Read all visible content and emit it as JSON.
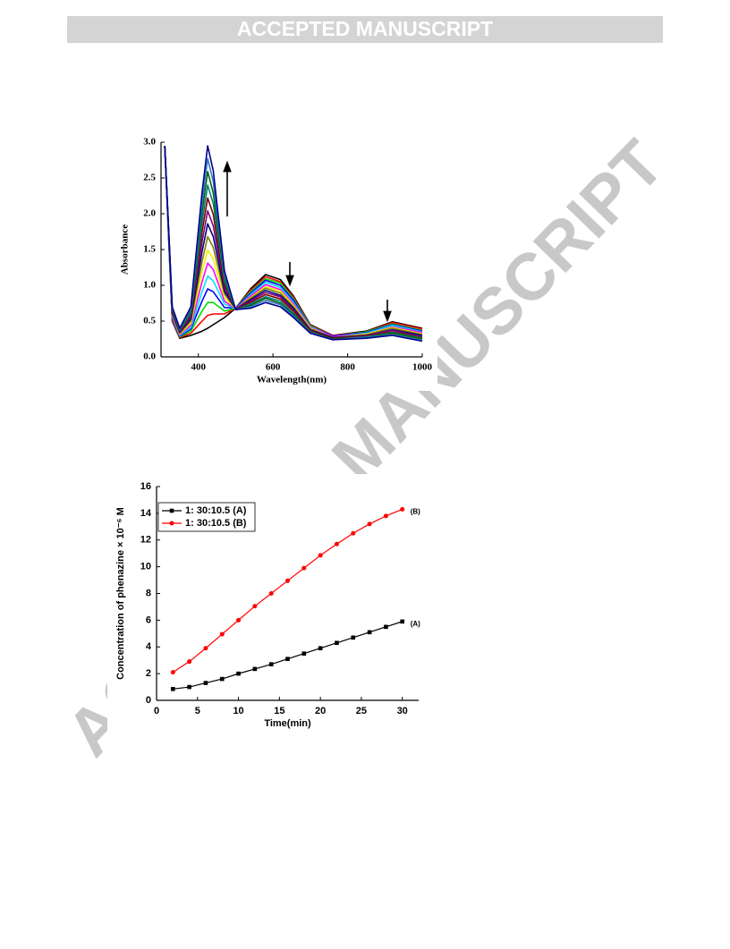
{
  "header": {
    "banner": "ACCEPTED MANUSCRIPT"
  },
  "watermark": "ACCEPTED MANUSCRIPT",
  "chart_data": [
    {
      "type": "line",
      "xlabel": "Wavelength(nm)",
      "ylabel": "Absorbance",
      "xlim": [
        300,
        1000
      ],
      "ylim": [
        0,
        3.0
      ],
      "xticks": [
        400,
        600,
        800,
        1000
      ],
      "yticks": [
        {
          "value": 0,
          "label": "0.0"
        },
        {
          "value": 0.5,
          "label": "0.5"
        },
        {
          "value": 1,
          "label": "1.0"
        },
        {
          "value": 1.5,
          "label": "1.5"
        },
        {
          "value": 2,
          "label": "2.0"
        },
        {
          "value": 2.5,
          "label": "2.5"
        },
        {
          "value": 3,
          "label": "3.0"
        }
      ],
      "x": [
        310,
        330,
        350,
        380,
        410,
        425,
        440,
        470,
        500,
        540,
        580,
        620,
        655,
        700,
        760,
        850,
        920,
        1000
      ],
      "series": [
        {
          "color": "#000000",
          "values": [
            2.95,
            0.5,
            0.26,
            0.3,
            0.36,
            0.4,
            0.45,
            0.55,
            0.68,
            0.95,
            1.15,
            1.08,
            0.85,
            0.45,
            0.3,
            0.36,
            0.49,
            0.4
          ]
        },
        {
          "color": "#ff0000",
          "values": [
            2.95,
            0.51,
            0.27,
            0.33,
            0.5,
            0.58,
            0.6,
            0.6,
            0.68,
            0.93,
            1.12,
            1.05,
            0.83,
            0.44,
            0.3,
            0.35,
            0.48,
            0.39
          ]
        },
        {
          "color": "#00dd00",
          "values": [
            2.95,
            0.53,
            0.28,
            0.36,
            0.64,
            0.76,
            0.76,
            0.64,
            0.68,
            0.91,
            1.09,
            1.03,
            0.81,
            0.43,
            0.29,
            0.35,
            0.46,
            0.37
          ]
        },
        {
          "color": "#0000ff",
          "values": [
            2.95,
            0.54,
            0.29,
            0.39,
            0.78,
            0.95,
            0.91,
            0.69,
            0.68,
            0.89,
            1.07,
            1.0,
            0.79,
            0.42,
            0.29,
            0.34,
            0.45,
            0.36
          ]
        },
        {
          "color": "#00e0ff",
          "values": [
            2.95,
            0.56,
            0.3,
            0.41,
            0.91,
            1.13,
            1.06,
            0.74,
            0.67,
            0.87,
            1.04,
            0.97,
            0.76,
            0.42,
            0.28,
            0.33,
            0.44,
            0.35
          ]
        },
        {
          "color": "#ff00ff",
          "values": [
            2.95,
            0.57,
            0.31,
            0.44,
            1.05,
            1.31,
            1.22,
            0.78,
            0.67,
            0.85,
            1.01,
            0.94,
            0.74,
            0.41,
            0.28,
            0.32,
            0.42,
            0.34
          ]
        },
        {
          "color": "#f0f000",
          "values": [
            2.95,
            0.59,
            0.32,
            0.47,
            1.19,
            1.49,
            1.37,
            0.83,
            0.67,
            0.83,
            0.98,
            0.92,
            0.72,
            0.4,
            0.27,
            0.32,
            0.41,
            0.32
          ]
        },
        {
          "color": "#808000",
          "values": [
            2.95,
            0.6,
            0.33,
            0.5,
            1.33,
            1.68,
            1.53,
            0.88,
            0.67,
            0.82,
            0.96,
            0.89,
            0.7,
            0.39,
            0.27,
            0.31,
            0.4,
            0.31
          ]
        },
        {
          "color": "#000080",
          "values": [
            2.95,
            0.61,
            0.34,
            0.53,
            1.47,
            1.86,
            1.68,
            0.92,
            0.67,
            0.8,
            0.93,
            0.86,
            0.68,
            0.38,
            0.27,
            0.3,
            0.38,
            0.3
          ]
        },
        {
          "color": "#800080",
          "values": [
            2.95,
            0.63,
            0.35,
            0.56,
            1.61,
            2.04,
            1.83,
            0.97,
            0.67,
            0.78,
            0.9,
            0.84,
            0.66,
            0.37,
            0.26,
            0.3,
            0.37,
            0.28
          ]
        },
        {
          "color": "#800000",
          "values": [
            2.95,
            0.64,
            0.36,
            0.59,
            1.75,
            2.22,
            1.99,
            1.01,
            0.66,
            0.76,
            0.87,
            0.81,
            0.64,
            0.36,
            0.26,
            0.29,
            0.35,
            0.27
          ]
        },
        {
          "color": "#008080",
          "values": [
            2.95,
            0.66,
            0.37,
            0.61,
            1.88,
            2.4,
            2.14,
            1.06,
            0.66,
            0.74,
            0.84,
            0.78,
            0.61,
            0.35,
            0.25,
            0.28,
            0.34,
            0.26
          ]
        },
        {
          "color": "#006400",
          "values": [
            2.95,
            0.67,
            0.38,
            0.64,
            2.02,
            2.59,
            2.29,
            1.11,
            0.66,
            0.72,
            0.82,
            0.75,
            0.59,
            0.35,
            0.25,
            0.27,
            0.33,
            0.25
          ]
        },
        {
          "color": "#3377cc",
          "values": [
            2.95,
            0.69,
            0.39,
            0.67,
            2.16,
            2.77,
            2.45,
            1.15,
            0.66,
            0.7,
            0.79,
            0.73,
            0.57,
            0.34,
            0.24,
            0.27,
            0.31,
            0.23
          ]
        },
        {
          "color": "#00008b",
          "values": [
            2.95,
            0.7,
            0.4,
            0.7,
            2.3,
            2.95,
            2.6,
            1.2,
            0.66,
            0.68,
            0.76,
            0.7,
            0.55,
            0.33,
            0.24,
            0.26,
            0.3,
            0.22
          ]
        }
      ]
    },
    {
      "type": "line",
      "xlabel": "Time(min)",
      "ylabel": "Concentration of phenazine × 10⁻⁶ M",
      "xlim": [
        0,
        32
      ],
      "ylim": [
        0,
        16
      ],
      "xticks": [
        0,
        5,
        10,
        15,
        20,
        25,
        30
      ],
      "yticks": [
        0,
        2,
        4,
        6,
        8,
        10,
        12,
        14,
        16
      ],
      "legend": "upper left",
      "x": [
        2,
        4,
        6,
        8,
        10,
        12,
        14,
        16,
        18,
        20,
        22,
        24,
        26,
        28,
        30
      ],
      "series": [
        {
          "name": "1: 30:10.5 (A)",
          "end_label": "(A)",
          "color": "#000000",
          "marker": "square",
          "values": [
            0.85,
            1.0,
            1.3,
            1.6,
            2.0,
            2.35,
            2.7,
            3.1,
            3.5,
            3.9,
            4.3,
            4.7,
            5.1,
            5.5,
            5.9
          ]
        },
        {
          "name": "1: 30:10.5 (B)",
          "end_label": "(B)",
          "color": "#ff0000",
          "marker": "circle",
          "values": [
            2.1,
            2.9,
            3.9,
            4.95,
            6.0,
            7.05,
            8.0,
            8.95,
            9.9,
            10.85,
            11.7,
            12.5,
            13.2,
            13.8,
            14.3
          ]
        }
      ]
    }
  ]
}
